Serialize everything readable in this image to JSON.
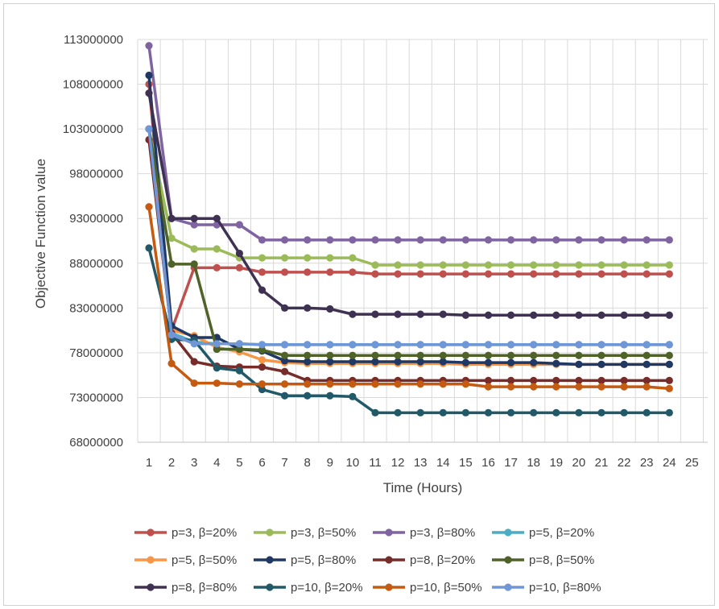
{
  "chart_data": {
    "type": "line",
    "title": "",
    "xlabel": "Time (Hours)",
    "ylabel": "Objective Function value",
    "x_ticks": [
      "1",
      "2",
      "3",
      "4",
      "5",
      "6",
      "7",
      "8",
      "9",
      "10",
      "11",
      "12",
      "13",
      "14",
      "15",
      "16",
      "17",
      "18",
      "19",
      "20",
      "21",
      "22",
      "23",
      "24",
      "25"
    ],
    "y_ticks": [
      "68000000",
      "73000000",
      "78000000",
      "83000000",
      "88000000",
      "93000000",
      "98000000",
      "103000000",
      "108000000",
      "113000000"
    ],
    "ylim": [
      68000000,
      113000000
    ],
    "xlim": [
      1,
      25
    ],
    "grid": true,
    "legend_position": "bottom",
    "series": [
      {
        "name": "p=3, β=20%",
        "color": "#c0504d",
        "values": [
          108000000,
          80500000,
          87500000,
          87500000,
          87500000,
          87000000,
          87000000,
          87000000,
          87000000,
          87000000,
          86800000,
          86800000,
          86800000,
          86800000,
          86800000,
          86800000,
          86800000,
          86800000,
          86800000,
          86800000,
          86800000,
          86800000,
          86800000,
          86800000
        ]
      },
      {
        "name": "p=3, β=50%",
        "color": "#9bbb59",
        "values": [
          103000000,
          90800000,
          89600000,
          89600000,
          88600000,
          88600000,
          88600000,
          88600000,
          88600000,
          88600000,
          87800000,
          87800000,
          87800000,
          87800000,
          87800000,
          87800000,
          87800000,
          87800000,
          87800000,
          87800000,
          87800000,
          87800000,
          87800000,
          87800000
        ]
      },
      {
        "name": "p=3, β=80%",
        "color": "#8064a2",
        "values": [
          112300000,
          93000000,
          92300000,
          92300000,
          92300000,
          90600000,
          90600000,
          90600000,
          90600000,
          90600000,
          90600000,
          90600000,
          90600000,
          90600000,
          90600000,
          90600000,
          90600000,
          90600000,
          90600000,
          90600000,
          90600000,
          90600000,
          90600000,
          90600000
        ]
      },
      {
        "name": "p=5, β=20%",
        "color": "#4bacc6",
        "values": [
          103000000,
          80200000,
          79200000,
          79000000,
          79000000,
          78900000,
          78900000,
          78900000,
          78900000,
          78900000,
          78900000,
          78900000,
          78900000,
          78900000,
          78900000,
          78900000,
          78900000,
          78900000,
          78900000,
          78900000,
          78900000,
          78900000,
          78900000,
          78900000
        ]
      },
      {
        "name": "p=5, β=50%",
        "color": "#f79646",
        "values": [
          103000000,
          80500000,
          79900000,
          78600000,
          78100000,
          77200000,
          76900000,
          76800000,
          76800000,
          76800000,
          76800000,
          76800000,
          76800000,
          76800000,
          76700000,
          76700000,
          76700000,
          76700000,
          76700000,
          76700000,
          76700000,
          76700000,
          76700000,
          76700000
        ]
      },
      {
        "name": "p=5, β=80%",
        "color": "#1f3864",
        "values": [
          109000000,
          81000000,
          79700000,
          79700000,
          78400000,
          78200000,
          77100000,
          77000000,
          77000000,
          77000000,
          77000000,
          77000000,
          77000000,
          77000000,
          76900000,
          76900000,
          76900000,
          76900000,
          76800000,
          76700000,
          76700000,
          76700000,
          76700000,
          76700000
        ]
      },
      {
        "name": "p=8, β=20%",
        "color": "#772c2a",
        "values": [
          101800000,
          80200000,
          77000000,
          76500000,
          76400000,
          76400000,
          75900000,
          74900000,
          74900000,
          74900000,
          74900000,
          74900000,
          74900000,
          74900000,
          74900000,
          74900000,
          74900000,
          74900000,
          74900000,
          74900000,
          74900000,
          74900000,
          74900000,
          74900000
        ]
      },
      {
        "name": "p=8, β=50%",
        "color": "#4f6228",
        "values": [
          103000000,
          87900000,
          87900000,
          78400000,
          78400000,
          78300000,
          77700000,
          77700000,
          77700000,
          77700000,
          77700000,
          77700000,
          77700000,
          77700000,
          77700000,
          77700000,
          77700000,
          77700000,
          77700000,
          77700000,
          77700000,
          77700000,
          77700000,
          77700000
        ]
      },
      {
        "name": "p=8, β=80%",
        "color": "#3f3151",
        "values": [
          107000000,
          93000000,
          93000000,
          93000000,
          89100000,
          85000000,
          83000000,
          83000000,
          82900000,
          82300000,
          82300000,
          82300000,
          82300000,
          82300000,
          82200000,
          82200000,
          82200000,
          82200000,
          82200000,
          82200000,
          82200000,
          82200000,
          82200000,
          82200000
        ]
      },
      {
        "name": "p=10, β=20%",
        "color": "#215968",
        "values": [
          89700000,
          79500000,
          79400000,
          76300000,
          76000000,
          73900000,
          73200000,
          73200000,
          73200000,
          73100000,
          71300000,
          71300000,
          71300000,
          71300000,
          71300000,
          71300000,
          71300000,
          71300000,
          71300000,
          71300000,
          71300000,
          71300000,
          71300000,
          71300000
        ]
      },
      {
        "name": "p=10, β=50%",
        "color": "#c55a11",
        "values": [
          94300000,
          76800000,
          74600000,
          74600000,
          74500000,
          74500000,
          74500000,
          74500000,
          74500000,
          74500000,
          74500000,
          74500000,
          74500000,
          74500000,
          74500000,
          74200000,
          74200000,
          74200000,
          74200000,
          74200000,
          74200000,
          74200000,
          74200000,
          74000000
        ]
      },
      {
        "name": "p=10, β=80%",
        "color": "#6f96d6",
        "values": [
          103000000,
          80000000,
          79000000,
          79000000,
          79000000,
          78900000,
          78900000,
          78900000,
          78900000,
          78900000,
          78900000,
          78900000,
          78900000,
          78900000,
          78900000,
          78900000,
          78900000,
          78900000,
          78900000,
          78900000,
          78900000,
          78900000,
          78900000,
          78900000
        ]
      }
    ]
  }
}
